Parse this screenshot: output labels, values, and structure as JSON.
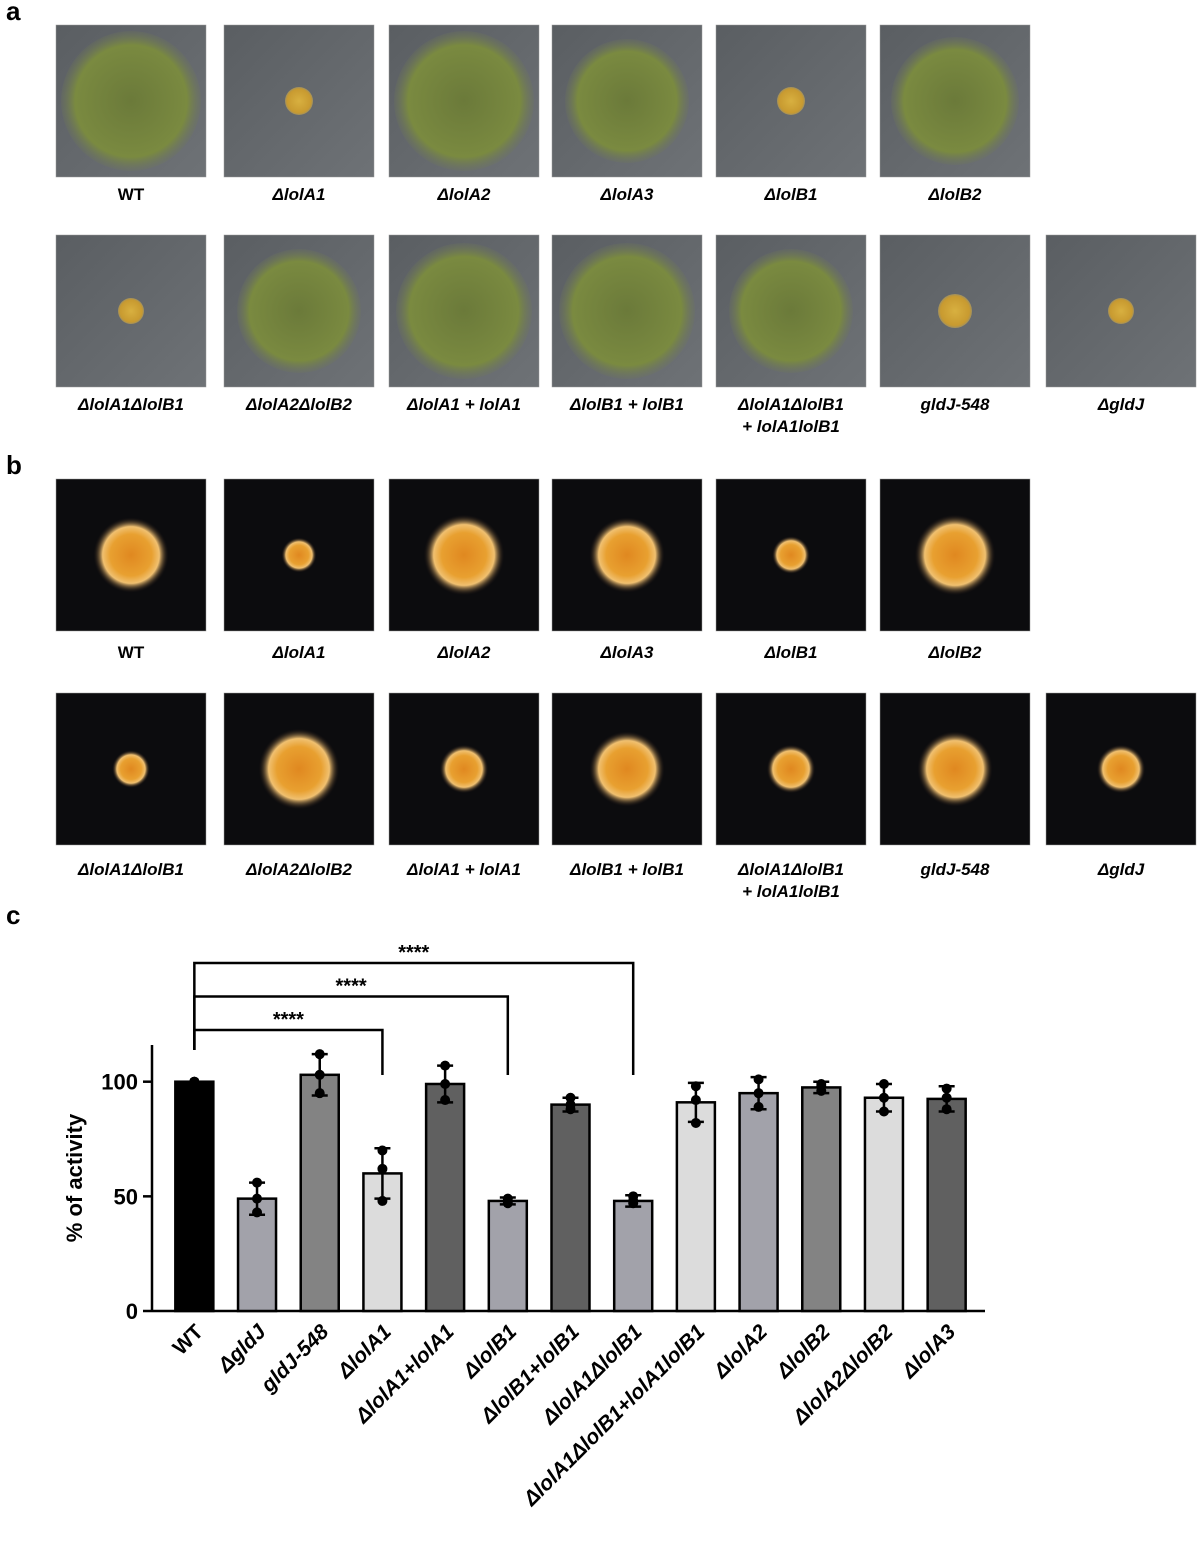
{
  "panels": [
    {
      "label": "a",
      "rows": [
        [
          "WT",
          "ΔlolA1",
          "ΔlolA2",
          "ΔlolA3",
          "ΔlolB1",
          "ΔlolB2"
        ],
        [
          "ΔlolA1ΔlolB1",
          "ΔlolA2ΔlolB2",
          "ΔlolA1 + lolA1",
          "ΔlolB1 + lolB1",
          "ΔlolA1ΔlolB1\n+ lolA1lolB1",
          "gldJ-548",
          "ΔgldJ"
        ]
      ]
    },
    {
      "label": "b",
      "rows": [
        [
          "WT",
          "ΔlolA1",
          "ΔlolA2",
          "ΔlolA3",
          "ΔlolB1",
          "ΔlolB2"
        ],
        [
          "ΔlolA1ΔlolB1",
          "ΔlolA2ΔlolB2",
          "ΔlolA1 + lolA1",
          "ΔlolB1 + lolB1",
          "ΔlolA1ΔlolB1\n+ lolA1lolB1",
          "gldJ-548",
          "ΔgldJ"
        ]
      ]
    }
  ],
  "chart_data": {
    "type": "bar",
    "label": "c",
    "ylabel": "% of activity",
    "categories": [
      "WT",
      "ΔgldJ",
      "gldJ-548",
      "ΔlolA1",
      "ΔlolA1+lolA1",
      "ΔlolB1",
      "ΔlolB1+lolB1",
      "ΔlolA1ΔlolB1",
      "ΔlolA1ΔlolB1+lolA1lolB1",
      "ΔlolA2",
      "ΔlolB2",
      "ΔlolA2ΔlolB2",
      "ΔlolA3"
    ],
    "values": [
      100,
      49,
      103,
      60,
      99,
      48,
      90,
      48,
      91,
      95,
      97.5,
      93,
      92.5
    ],
    "errors": [
      0,
      7,
      9,
      11,
      8,
      1.5,
      3,
      2.5,
      8.5,
      7,
      2.5,
      6,
      5.5
    ],
    "points": [
      [
        100,
        100,
        100
      ],
      [
        56,
        49,
        43
      ],
      [
        112,
        103,
        95
      ],
      [
        70,
        62,
        48
      ],
      [
        107,
        99,
        92
      ],
      [
        49,
        48,
        47
      ],
      [
        93,
        90,
        88
      ],
      [
        50,
        48,
        47
      ],
      [
        98,
        92,
        82
      ],
      [
        101,
        95,
        89
      ],
      [
        99,
        98,
        96
      ],
      [
        99,
        93,
        87
      ],
      [
        97,
        93,
        88
      ]
    ],
    "colors": [
      "#000000",
      "#a2a2aa",
      "#838383",
      "#dcdcdc",
      "#606060",
      "#a2a2aa",
      "#606060",
      "#a2a2aa",
      "#dcdcdc",
      "#a2a2aa",
      "#838383",
      "#dcdcdc",
      "#606060"
    ],
    "ylim": [
      0,
      116
    ],
    "yticks": [
      0,
      50,
      100
    ],
    "annotations": [
      {
        "label": "****",
        "to": "ΔlolA1"
      },
      {
        "label": "****",
        "to": "ΔlolB1"
      },
      {
        "label": "****",
        "to": "ΔlolA1ΔlolB1"
      }
    ]
  }
}
